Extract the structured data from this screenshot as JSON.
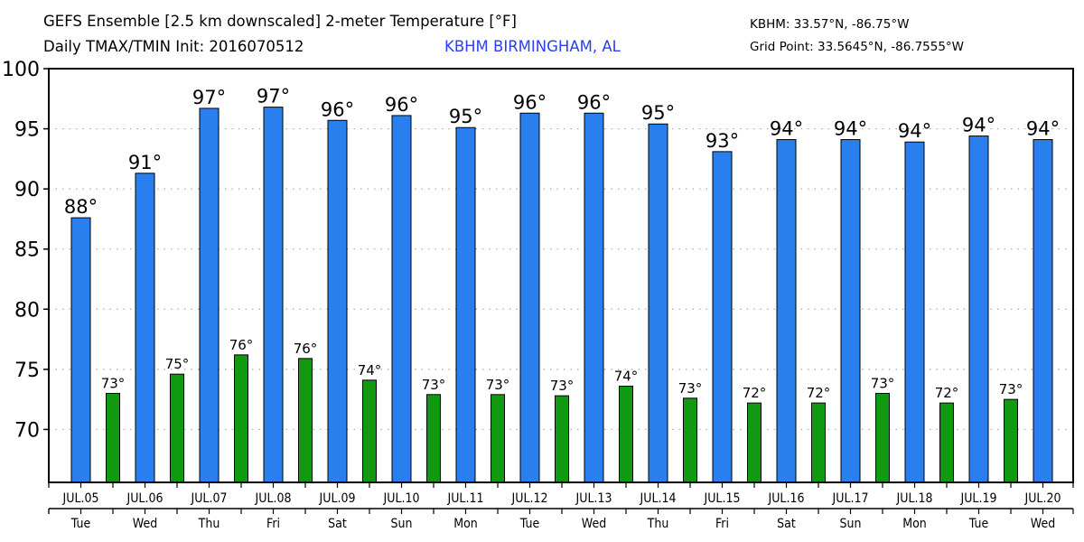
{
  "header": {
    "title": "GEFS Ensemble [2.5 km downscaled] 2-meter Temperature [°F]",
    "subtitle": "Daily TMAX/TMIN Init: 2016070512",
    "station_name": "KBHM BIRMINGHAM, AL",
    "station_coords": "KBHM: 33.57°N, -86.75°W",
    "grid_point": "Grid Point: 33.5645°N, -86.7555°W"
  },
  "colors": {
    "tmax": "#2a7fee",
    "tmin": "#119911",
    "station_text": "#2b3ff0",
    "grid": "#aaaaaa"
  },
  "chart_data": {
    "type": "bar",
    "title": "GEFS Ensemble [2.5 km downscaled] 2-meter Temperature [°F]",
    "subtitle": "Daily TMAX/TMIN Init: 2016070512",
    "xlabel": "",
    "ylabel": "",
    "ylim": [
      65.6,
      100
    ],
    "yticks": [
      70,
      75,
      80,
      85,
      90,
      95,
      100
    ],
    "grid": "horizontal-dotted",
    "legend": "none",
    "categories": [
      "JUL.05",
      "JUL.06",
      "JUL.07",
      "JUL.08",
      "JUL.09",
      "JUL.10",
      "JUL.11",
      "JUL.12",
      "JUL.13",
      "JUL.14",
      "JUL.15",
      "JUL.16",
      "JUL.17",
      "JUL.18",
      "JUL.19",
      "JUL.20"
    ],
    "weekdays": [
      "Tue",
      "Wed",
      "Thu",
      "Fri",
      "Sat",
      "Sun",
      "Mon",
      "Tue",
      "Wed",
      "Thu",
      "Fri",
      "Sat",
      "Sun",
      "Mon",
      "Tue",
      "Wed"
    ],
    "series": [
      {
        "name": "TMAX",
        "values": [
          87.6,
          91.3,
          96.7,
          96.8,
          95.7,
          96.1,
          95.1,
          96.3,
          96.3,
          95.4,
          93.1,
          94.1,
          94.1,
          93.9,
          94.4,
          94.1
        ],
        "labels": [
          "88°",
          "91°",
          "97°",
          "97°",
          "96°",
          "96°",
          "95°",
          "96°",
          "96°",
          "95°",
          "93°",
          "94°",
          "94°",
          "94°",
          "94°",
          "94°"
        ]
      },
      {
        "name": "TMIN",
        "values": [
          73.0,
          74.6,
          76.2,
          75.9,
          74.1,
          72.9,
          72.9,
          72.8,
          73.6,
          72.6,
          72.2,
          72.2,
          73.0,
          72.2,
          72.5
        ],
        "labels": [
          "73°",
          "75°",
          "76°",
          "76°",
          "74°",
          "73°",
          "73°",
          "73°",
          "74°",
          "73°",
          "72°",
          "72°",
          "73°",
          "72°",
          "73°"
        ]
      }
    ]
  }
}
